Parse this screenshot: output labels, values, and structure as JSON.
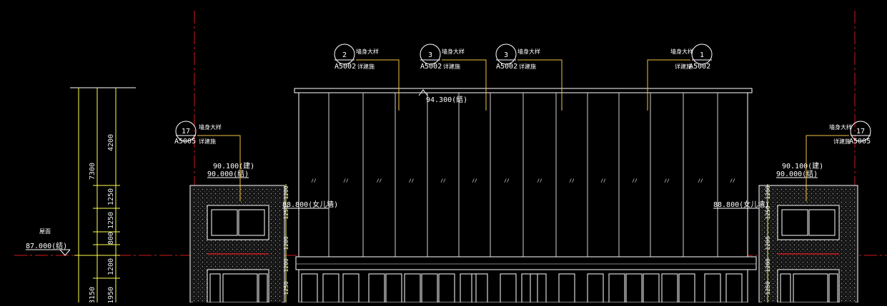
{
  "colors": {
    "background": "#000000",
    "axis": "#d0191c",
    "dimension": "#ffff4a",
    "linework": "#ffffff",
    "leader": "#f5c242",
    "glazing": "#cfcfcf"
  },
  "callouts": [
    {
      "num": "2",
      "sheet": "A5002",
      "title": "墙身大样",
      "note": "详建施"
    },
    {
      "num": "3",
      "sheet": "A5002",
      "title": "墙身大样",
      "note": "详建施"
    },
    {
      "num": "3",
      "sheet": "A5002",
      "title": "墙身大样",
      "note": "详建施"
    },
    {
      "num": "1",
      "sheet": "A5002",
      "title": "墙身大样",
      "note": "详建施"
    },
    {
      "num": "17",
      "sheet": "A5005",
      "title": "墙身大样",
      "note": "详建施"
    },
    {
      "num": "17",
      "sheet": "A5005",
      "title": "墙身大样",
      "note": "详建施"
    }
  ],
  "elevations": {
    "roof": "94.300(结)",
    "left_top_1": "90.100(建)",
    "left_top_2": "90.000(结)",
    "right_top_1": "90.100(建)",
    "right_top_2": "90.000(结)",
    "left_parapet": "88.800(女儿墙)",
    "right_parapet": "88.800(女儿墙)",
    "ground": "87.000(结)",
    "ground_label": "屋面"
  },
  "dims_left": [
    "4200",
    "7300",
    "1250",
    "1250",
    "800",
    "1200",
    "3150",
    "1950"
  ],
  "dims_tower_left": [
    "1200",
    "1250",
    "1200",
    "1200",
    "1250"
  ],
  "dims_tower_right": [
    "1200",
    "1250",
    "1200",
    "1200",
    "1250"
  ],
  "glass_mark": "// "
}
